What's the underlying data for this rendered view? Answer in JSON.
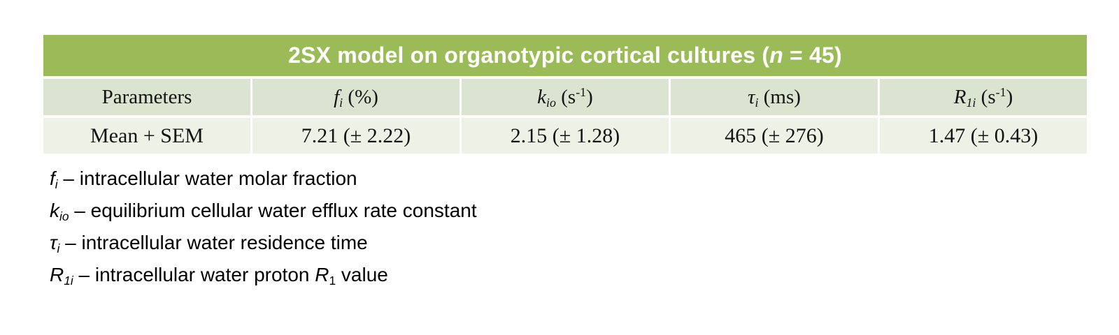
{
  "colors": {
    "title_bg": "#9BBB59",
    "title_text": "#FFFFFF",
    "header_row_bg": "#DBE4D1",
    "data_row_bg": "#EDF1E6",
    "page_bg": "#FFFFFF",
    "table_text": "#141414",
    "footnote_text": "#000000"
  },
  "table": {
    "title_runs": [
      {
        "t": "2SX model on organotypic cortical cultures ("
      },
      {
        "t": "n",
        "s": "i"
      },
      {
        "t": " = 45)"
      }
    ],
    "header_runs": [
      [
        {
          "t": "Parameters"
        }
      ],
      [
        {
          "t": "f",
          "s": "i"
        },
        {
          "t": "i",
          "s": "i sub"
        },
        {
          "t": " (%)"
        }
      ],
      [
        {
          "t": "k",
          "s": "i"
        },
        {
          "t": "io",
          "s": "i sub"
        },
        {
          "t": " (s"
        },
        {
          "t": "-1",
          "s": "sup"
        },
        {
          "t": ")"
        }
      ],
      [
        {
          "t": "τ",
          "s": "i"
        },
        {
          "t": "i",
          "s": "i sub"
        },
        {
          "t": " (ms)"
        }
      ],
      [
        {
          "t": "R",
          "s": "i"
        },
        {
          "t": "1i",
          "s": "i sub"
        },
        {
          "t": " (s"
        },
        {
          "t": "-1",
          "s": "sup"
        },
        {
          "t": ")"
        }
      ]
    ],
    "row_runs": [
      [
        {
          "t": "Mean + SEM"
        }
      ],
      [
        {
          "t": "7.21 (± 2.22)"
        }
      ],
      [
        {
          "t": "2.15 (± 1.28)"
        }
      ],
      [
        {
          "t": "465 (± 276)"
        }
      ],
      [
        {
          "t": "1.47 (± 0.43)"
        }
      ]
    ]
  },
  "footnotes": [
    [
      {
        "t": "f",
        "s": "i"
      },
      {
        "t": "i",
        "s": "i sub"
      },
      {
        "t": " – intracellular water molar fraction"
      }
    ],
    [
      {
        "t": "k",
        "s": "i"
      },
      {
        "t": "io",
        "s": "i sub"
      },
      {
        "t": " – equilibrium cellular water efflux rate constant"
      }
    ],
    [
      {
        "t": "τ",
        "s": "i"
      },
      {
        "t": "i",
        "s": "i sub"
      },
      {
        "t": " – intracellular water residence time"
      }
    ],
    [
      {
        "t": "R",
        "s": "i"
      },
      {
        "t": "1i",
        "s": "i sub"
      },
      {
        "t": " – intracellular water proton "
      },
      {
        "t": "R",
        "s": "i"
      },
      {
        "t": "1",
        "s": "sub"
      },
      {
        "t": " value"
      }
    ]
  ],
  "chart_data": {
    "type": "table",
    "title": "2SX model on organotypic cortical cultures (n = 45)",
    "n": 45,
    "columns": [
      "Parameters",
      "f_i (%)",
      "k_io (s^-1)",
      "τ_i (ms)",
      "R_1i (s^-1)"
    ],
    "rows": [
      [
        "Mean + SEM",
        "7.21 (± 2.22)",
        "2.15 (± 1.28)",
        "465 (± 276)",
        "1.47 (± 0.43)"
      ]
    ],
    "values": {
      "f_i_percent": {
        "mean": 7.21,
        "sem": 2.22
      },
      "k_io_per_s": {
        "mean": 2.15,
        "sem": 1.28
      },
      "tau_i_ms": {
        "mean": 465,
        "sem": 276
      },
      "R_1i_per_s": {
        "mean": 1.47,
        "sem": 0.43
      }
    },
    "footnotes": [
      "f_i – intracellular water molar fraction",
      "k_io – equilibrium cellular water efflux rate constant",
      "τ_i – intracellular water residence time",
      "R_1i – intracellular water proton R_1 value"
    ]
  }
}
